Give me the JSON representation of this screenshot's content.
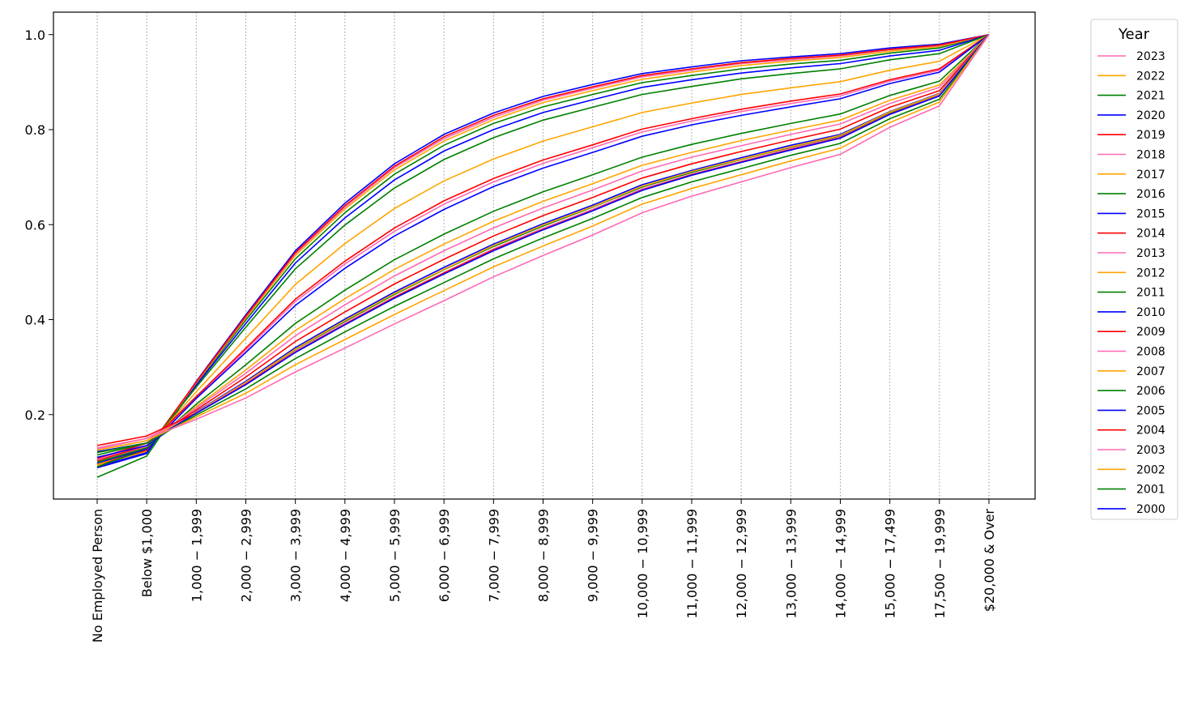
{
  "chart_data": {
    "type": "line",
    "title": "",
    "xlabel": "",
    "ylabel": "",
    "ylim": [
      0.04,
      1.05
    ],
    "yticks": [
      "0.2",
      "0.4",
      "0.6",
      "0.8",
      "1.0"
    ],
    "grid": "vertical dotted",
    "legend_title": "Year",
    "legend_placement": "outside right",
    "categories": [
      "No Employed Person",
      "Below $1,000",
      "1,000 − 1,999",
      "2,000 − 2,999",
      "3,000 − 3,999",
      "4,000 − 4,999",
      "5,000 − 5,999",
      "6,000 − 6,999",
      "7,000 − 7,999",
      "8,000 − 8,999",
      "9,000 − 9,999",
      "10,000 − 10,999",
      "11,000 − 11,999",
      "12,000 − 12,999",
      "13,000 − 13,999",
      "14,000 − 14,999",
      "15,000 − 17,499",
      "17,500 − 19,999",
      "$20,000 & Over"
    ],
    "series": [
      {
        "name": "2023",
        "color": "#ff69b4",
        "values": [
          0.13,
          0.15,
          0.19,
          0.235,
          0.29,
          0.34,
          0.391,
          0.44,
          0.49,
          0.535,
          0.578,
          0.625,
          0.66,
          0.69,
          0.72,
          0.748,
          0.805,
          0.85,
          1.0
        ]
      },
      {
        "name": "2022",
        "color": "#ffa500",
        "values": [
          0.125,
          0.145,
          0.195,
          0.245,
          0.305,
          0.358,
          0.411,
          0.461,
          0.511,
          0.555,
          0.597,
          0.643,
          0.676,
          0.705,
          0.734,
          0.761,
          0.815,
          0.858,
          1.0
        ]
      },
      {
        "name": "2021",
        "color": "#008000",
        "values": [
          0.12,
          0.14,
          0.199,
          0.254,
          0.318,
          0.374,
          0.428,
          0.478,
          0.528,
          0.572,
          0.613,
          0.657,
          0.69,
          0.718,
          0.746,
          0.771,
          0.823,
          0.864,
          1.0
        ]
      },
      {
        "name": "2020",
        "color": "#0000ff",
        "values": [
          0.122,
          0.14,
          0.203,
          0.263,
          0.331,
          0.389,
          0.445,
          0.496,
          0.545,
          0.589,
          0.629,
          0.672,
          0.704,
          0.731,
          0.757,
          0.782,
          0.832,
          0.871,
          1.0
        ]
      },
      {
        "name": "2019",
        "color": "#ff0000",
        "values": [
          0.135,
          0.155,
          0.203,
          0.264,
          0.332,
          0.39,
          0.447,
          0.498,
          0.547,
          0.59,
          0.63,
          0.673,
          0.705,
          0.732,
          0.758,
          0.783,
          0.833,
          0.871,
          1.0
        ]
      },
      {
        "name": "2018",
        "color": "#ff69b4",
        "values": [
          0.128,
          0.15,
          0.204,
          0.265,
          0.333,
          0.392,
          0.448,
          0.499,
          0.549,
          0.592,
          0.632,
          0.675,
          0.706,
          0.733,
          0.76,
          0.784,
          0.833,
          0.872,
          1.0
        ]
      },
      {
        "name": "2017",
        "color": "#ffa500",
        "values": [
          0.125,
          0.145,
          0.205,
          0.268,
          0.338,
          0.398,
          0.455,
          0.506,
          0.556,
          0.599,
          0.638,
          0.681,
          0.712,
          0.738,
          0.764,
          0.788,
          0.837,
          0.875,
          1.0
        ]
      },
      {
        "name": "2016",
        "color": "#008000",
        "values": [
          0.115,
          0.14,
          0.205,
          0.267,
          0.337,
          0.396,
          0.453,
          0.505,
          0.554,
          0.597,
          0.637,
          0.679,
          0.71,
          0.737,
          0.763,
          0.787,
          0.836,
          0.874,
          1.0
        ]
      },
      {
        "name": "2015",
        "color": "#0000ff",
        "values": [
          0.11,
          0.135,
          0.206,
          0.27,
          0.341,
          0.401,
          0.458,
          0.51,
          0.559,
          0.602,
          0.641,
          0.684,
          0.714,
          0.741,
          0.767,
          0.79,
          0.838,
          0.876,
          1.0
        ]
      },
      {
        "name": "2014",
        "color": "#ff0000",
        "values": [
          0.108,
          0.14,
          0.21,
          0.279,
          0.354,
          0.416,
          0.475,
          0.527,
          0.576,
          0.619,
          0.657,
          0.698,
          0.728,
          0.754,
          0.778,
          0.801,
          0.847,
          0.882,
          1.0
        ]
      },
      {
        "name": "2013",
        "color": "#ff69b4",
        "values": [
          0.105,
          0.14,
          0.214,
          0.287,
          0.366,
          0.431,
          0.492,
          0.545,
          0.593,
          0.635,
          0.673,
          0.713,
          0.742,
          0.766,
          0.79,
          0.812,
          0.855,
          0.889,
          1.0
        ]
      },
      {
        "name": "2012",
        "color": "#ffa500",
        "values": [
          0.11,
          0.135,
          0.217,
          0.294,
          0.377,
          0.444,
          0.506,
          0.559,
          0.607,
          0.649,
          0.686,
          0.725,
          0.752,
          0.777,
          0.799,
          0.82,
          0.862,
          0.894,
          1.0
        ]
      },
      {
        "name": "2011",
        "color": "#008000",
        "values": [
          0.1,
          0.13,
          0.222,
          0.305,
          0.392,
          0.462,
          0.526,
          0.58,
          0.628,
          0.669,
          0.705,
          0.742,
          0.769,
          0.792,
          0.813,
          0.833,
          0.872,
          0.902,
          1.0
        ]
      },
      {
        "name": "2010",
        "color": "#0000ff",
        "values": [
          0.098,
          0.128,
          0.234,
          0.331,
          0.43,
          0.508,
          0.576,
          0.632,
          0.68,
          0.719,
          0.752,
          0.786,
          0.81,
          0.83,
          0.848,
          0.865,
          0.897,
          0.921,
          1.0
        ]
      },
      {
        "name": "2009",
        "color": "#ff0000",
        "values": [
          0.103,
          0.135,
          0.238,
          0.34,
          0.443,
          0.523,
          0.593,
          0.65,
          0.697,
          0.736,
          0.768,
          0.801,
          0.823,
          0.843,
          0.86,
          0.875,
          0.905,
          0.928,
          1.0
        ]
      },
      {
        "name": "2008",
        "color": "#ff69b4",
        "values": [
          0.1,
          0.133,
          0.236,
          0.336,
          0.438,
          0.517,
          0.586,
          0.643,
          0.69,
          0.729,
          0.762,
          0.795,
          0.818,
          0.838,
          0.855,
          0.871,
          0.902,
          0.925,
          1.0
        ]
      },
      {
        "name": "2007",
        "color": "#ffa500",
        "values": [
          0.095,
          0.13,
          0.248,
          0.361,
          0.474,
          0.56,
          0.634,
          0.692,
          0.738,
          0.776,
          0.806,
          0.836,
          0.856,
          0.874,
          0.888,
          0.901,
          0.925,
          0.944,
          1.0
        ]
      },
      {
        "name": "2006",
        "color": "#008000",
        "values": [
          0.09,
          0.128,
          0.258,
          0.384,
          0.507,
          0.599,
          0.677,
          0.737,
          0.783,
          0.82,
          0.847,
          0.874,
          0.891,
          0.907,
          0.918,
          0.928,
          0.947,
          0.96,
          1.0
        ]
      },
      {
        "name": "2005",
        "color": "#0000ff",
        "values": [
          0.09,
          0.12,
          0.262,
          0.392,
          0.519,
          0.614,
          0.694,
          0.755,
          0.8,
          0.836,
          0.863,
          0.889,
          0.905,
          0.919,
          0.93,
          0.939,
          0.955,
          0.967,
          1.0
        ]
      },
      {
        "name": "2004",
        "color": "#ff0000",
        "values": [
          0.095,
          0.125,
          0.269,
          0.407,
          0.541,
          0.64,
          0.723,
          0.785,
          0.83,
          0.865,
          0.89,
          0.914,
          0.928,
          0.941,
          0.95,
          0.957,
          0.969,
          0.978,
          1.0
        ]
      },
      {
        "name": "2003",
        "color": "#ff69b4",
        "values": [
          0.097,
          0.125,
          0.268,
          0.406,
          0.539,
          0.637,
          0.72,
          0.781,
          0.826,
          0.862,
          0.887,
          0.911,
          0.925,
          0.939,
          0.947,
          0.955,
          0.968,
          0.977,
          1.0
        ]
      },
      {
        "name": "2002",
        "color": "#ffa500",
        "values": [
          0.093,
          0.123,
          0.267,
          0.403,
          0.535,
          0.633,
          0.715,
          0.776,
          0.821,
          0.857,
          0.882,
          0.906,
          0.921,
          0.935,
          0.944,
          0.952,
          0.965,
          0.975,
          1.0
        ]
      },
      {
        "name": "2001",
        "color": "#008000",
        "values": [
          0.068,
          0.113,
          0.265,
          0.399,
          0.528,
          0.625,
          0.706,
          0.767,
          0.813,
          0.848,
          0.874,
          0.899,
          0.914,
          0.928,
          0.938,
          0.946,
          0.961,
          0.972,
          1.0
        ]
      },
      {
        "name": "2000",
        "color": "#0000ff",
        "values": [
          0.088,
          0.118,
          0.27,
          0.41,
          0.545,
          0.645,
          0.728,
          0.79,
          0.835,
          0.87,
          0.895,
          0.918,
          0.932,
          0.945,
          0.953,
          0.96,
          0.972,
          0.98,
          1.0
        ]
      }
    ]
  }
}
